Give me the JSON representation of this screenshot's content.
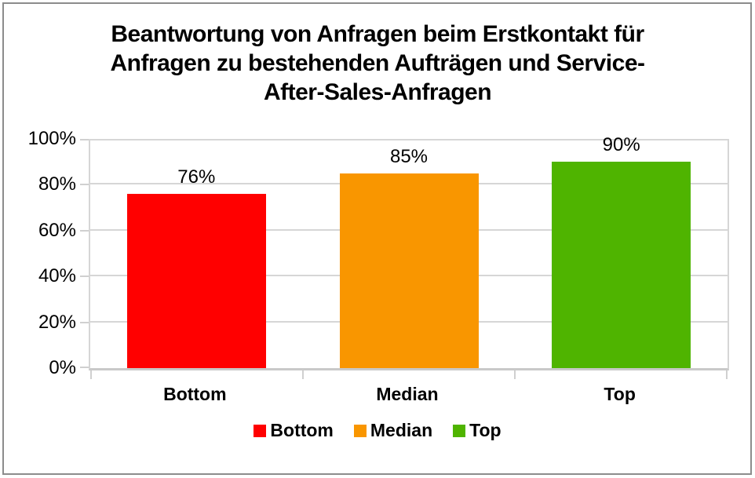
{
  "chart_data": {
    "type": "bar",
    "title": "Beantwortung von Anfragen beim Erstkontakt für Anfragen zu bestehenden Aufträgen und Service-After-Sales-Anfragen",
    "title_text": "Beantwortung von Anfragen beim Erstkontakt für\nAnfragen zu bestehenden Aufträgen und Service-\nAfter-Sales-Anfragen",
    "categories": [
      "Bottom",
      "Median",
      "Top"
    ],
    "values": [
      76,
      85,
      90
    ],
    "value_labels": [
      "76%",
      "85%",
      "90%"
    ],
    "bar_colors": [
      "#ff0000",
      "#f99600",
      "#4fb400"
    ],
    "y_tick_values": [
      0,
      20,
      40,
      60,
      80,
      100
    ],
    "y_tick_labels": [
      "0%",
      "20%",
      "40%",
      "60%",
      "80%",
      "100%"
    ],
    "ylim": [
      0,
      100
    ],
    "grid": true,
    "legend_position": "bottom",
    "legend": [
      {
        "label": "Bottom",
        "color": "#ff0000"
      },
      {
        "label": "Median",
        "color": "#f99600"
      },
      {
        "label": "Top",
        "color": "#4fb400"
      }
    ]
  },
  "colors": {
    "background": "#ffffff",
    "frame_border": "#8c8c8c",
    "gridline": "#d6d6d6",
    "axis": "#c9c9c9",
    "text": "#000000"
  }
}
